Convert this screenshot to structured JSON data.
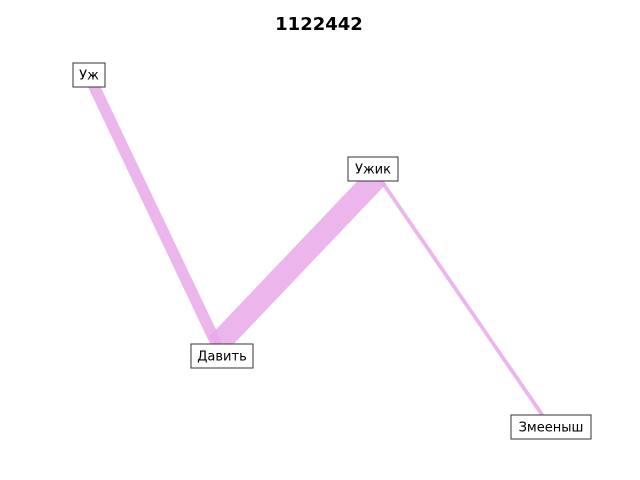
{
  "title": "1122442",
  "colors": {
    "edge": "#e9a9ea",
    "edge_overlap": "#c77fd0",
    "node_border": "#333333",
    "node_fill": "#ffffff"
  },
  "nodes": [
    {
      "id": "uzh",
      "label": "Уж"
    },
    {
      "id": "davit",
      "label": "Давить"
    },
    {
      "id": "uzhik",
      "label": "Ужик"
    },
    {
      "id": "zmeenysh",
      "label": "Змееныш"
    }
  ],
  "edges": [
    {
      "from": "uzh",
      "to": "davit",
      "weight": 3
    },
    {
      "from": "davit",
      "to": "uzhik",
      "weight": 6
    },
    {
      "from": "uzhik",
      "to": "zmeenysh",
      "weight": 1
    }
  ]
}
